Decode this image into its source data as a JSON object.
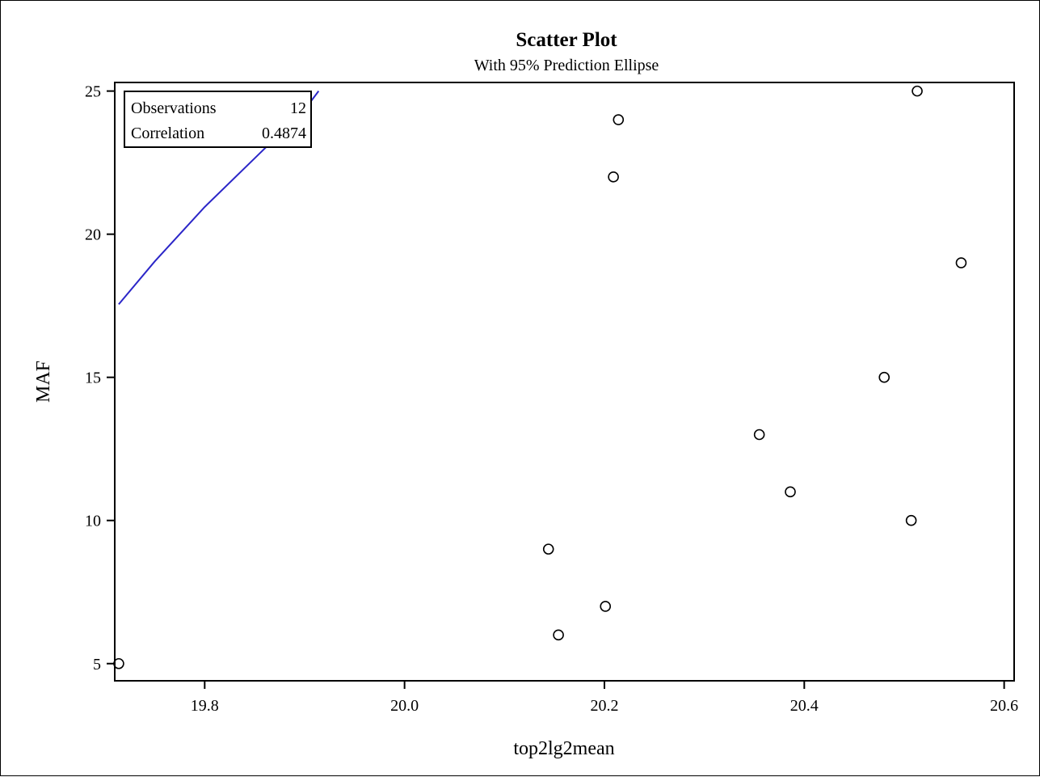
{
  "chart_data": {
    "type": "scatter",
    "title": "Scatter Plot",
    "subtitle": "With 95% Prediction Ellipse",
    "xlabel": "top2lg2mean",
    "ylabel": "MAF",
    "xlim": [
      19.71,
      20.61
    ],
    "ylim": [
      4.4,
      25.3
    ],
    "x_ticks": [
      {
        "value": 19.8,
        "label": "19.8"
      },
      {
        "value": 20.0,
        "label": "20.0"
      },
      {
        "value": 20.2,
        "label": "20.2"
      },
      {
        "value": 20.4,
        "label": "20.4"
      },
      {
        "value": 20.6,
        "label": "20.6"
      }
    ],
    "y_ticks": [
      {
        "value": 5,
        "label": "5"
      },
      {
        "value": 10,
        "label": "10"
      },
      {
        "value": 15,
        "label": "15"
      },
      {
        "value": 20,
        "label": "20"
      },
      {
        "value": 25,
        "label": "25"
      }
    ],
    "points": [
      {
        "x": 19.714,
        "y": 5
      },
      {
        "x": 20.144,
        "y": 9
      },
      {
        "x": 20.154,
        "y": 6
      },
      {
        "x": 20.201,
        "y": 7
      },
      {
        "x": 20.209,
        "y": 22
      },
      {
        "x": 20.214,
        "y": 24
      },
      {
        "x": 20.355,
        "y": 13
      },
      {
        "x": 20.386,
        "y": 11
      },
      {
        "x": 20.48,
        "y": 15
      },
      {
        "x": 20.507,
        "y": 10
      },
      {
        "x": 20.513,
        "y": 25
      },
      {
        "x": 20.557,
        "y": 19
      }
    ],
    "ellipse_curve": [
      {
        "x": 19.714,
        "y": 17.55
      },
      {
        "x": 19.75,
        "y": 19.05
      },
      {
        "x": 19.8,
        "y": 20.95
      },
      {
        "x": 19.85,
        "y": 22.65
      },
      {
        "x": 19.9,
        "y": 24.35
      },
      {
        "x": 19.914,
        "y": 25.0
      }
    ],
    "ellipse_color": "#2b26c8",
    "marker": "open-circle",
    "grid": false,
    "stats_box": {
      "placement": "top-left",
      "rows": [
        {
          "label": "Observations",
          "value": "12"
        },
        {
          "label": "Correlation",
          "value": "0.4874"
        }
      ]
    }
  }
}
